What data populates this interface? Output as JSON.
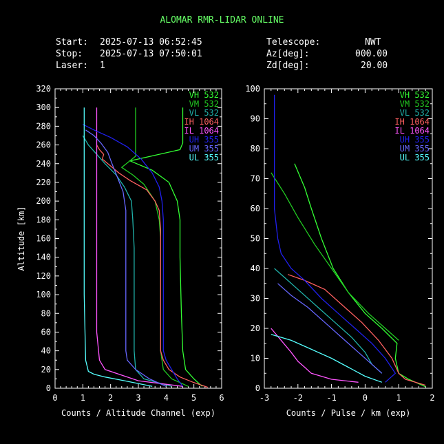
{
  "header": {
    "title": "ALOMAR RMR-LIDAR ONLINE",
    "start_label": "Start:",
    "start_value": "2025-07-13 06:52:45",
    "stop_label": "Stop:",
    "stop_value": "2025-07-13 07:50:01",
    "laser_label": "Laser:",
    "laser_value": "1",
    "telescope_label": "Telescope:",
    "telescope_value": "NWT",
    "az_label": "Az[deg]:",
    "az_value": "000.00",
    "zd_label": "Zd[deg]:",
    "zd_value": "20.00"
  },
  "colors": {
    "VH 532": "#33ff33",
    "VM 532": "#22cc22",
    "VL 532": "#20b2aa",
    "IH 1064": "#ff6060",
    "IL 1064": "#ff55ff",
    "UH 355": "#2020ee",
    "UM 355": "#6666ff",
    "UL 355": "#55ffff"
  },
  "chart_data": [
    {
      "type": "line",
      "ylabel": "Altitude [km]",
      "xlabel": "Counts / Altitude Channel (exp)",
      "xlim": [
        0,
        6
      ],
      "ylim": [
        0,
        320
      ],
      "xticks": [
        "0",
        "1",
        "2",
        "3",
        "4",
        "5",
        "6"
      ],
      "yticks": [
        "0",
        "20",
        "40",
        "60",
        "80",
        "100",
        "120",
        "140",
        "160",
        "180",
        "200",
        "220",
        "240",
        "260",
        "280",
        "300",
        "320"
      ],
      "legend": [
        "VH 532",
        "VM 532",
        "VL 532",
        "IH 1064",
        "IL 1064",
        "UH 355",
        "UM 355",
        "UL 355"
      ],
      "legend_position": "top-right",
      "series": [
        {
          "name": "VH 532",
          "points": [
            [
              5.3,
              2
            ],
            [
              5.0,
              10
            ],
            [
              4.7,
              20
            ],
            [
              4.6,
              40
            ],
            [
              4.55,
              80
            ],
            [
              4.5,
              140
            ],
            [
              4.5,
              180
            ],
            [
              4.4,
              200
            ],
            [
              4.1,
              220
            ],
            [
              3.5,
              233
            ],
            [
              2.7,
              243
            ],
            [
              4.5,
              255
            ],
            [
              4.6,
              262
            ],
            [
              4.6,
              300
            ]
          ]
        },
        {
          "name": "VM 532",
          "points": [
            [
              4.8,
              2
            ],
            [
              4.2,
              10
            ],
            [
              3.9,
              20
            ],
            [
              3.8,
              40
            ],
            [
              3.8,
              70
            ],
            [
              3.8,
              120
            ],
            [
              3.8,
              160
            ],
            [
              3.75,
              180
            ],
            [
              3.6,
              200
            ],
            [
              3.2,
              218
            ],
            [
              2.8,
              228
            ],
            [
              2.4,
              236
            ],
            [
              2.9,
              248
            ],
            [
              2.9,
              260
            ],
            [
              2.9,
              300
            ]
          ]
        },
        {
          "name": "VL 532",
          "points": [
            [
              4.2,
              2
            ],
            [
              3.2,
              10
            ],
            [
              2.9,
              20
            ],
            [
              2.85,
              40
            ],
            [
              2.85,
              100
            ],
            [
              2.85,
              150
            ],
            [
              2.8,
              180
            ],
            [
              2.75,
              200
            ],
            [
              2.5,
              215
            ],
            [
              2.2,
              228
            ],
            [
              1.8,
              240
            ],
            [
              1.5,
              250
            ],
            [
              1.2,
              260
            ],
            [
              1.0,
              270
            ]
          ]
        },
        {
          "name": "IH 1064",
          "points": [
            [
              5.5,
              1
            ],
            [
              5.0,
              6
            ],
            [
              4.5,
              12
            ],
            [
              4.1,
              20
            ],
            [
              3.9,
              30
            ],
            [
              3.8,
              40
            ],
            [
              3.8,
              80
            ],
            [
              3.8,
              120
            ],
            [
              3.8,
              170
            ],
            [
              3.75,
              190
            ],
            [
              3.6,
              200
            ],
            [
              3.3,
              212
            ],
            [
              2.7,
              222
            ],
            [
              2.3,
              230
            ],
            [
              1.9,
              240
            ],
            [
              1.7,
              245
            ],
            [
              1.75,
              250
            ],
            [
              1.6,
              255
            ],
            [
              1.5,
              260
            ]
          ]
        },
        {
          "name": "IL 1064",
          "points": [
            [
              4.6,
              2
            ],
            [
              3.0,
              8
            ],
            [
              2.3,
              15
            ],
            [
              1.8,
              20
            ],
            [
              1.6,
              30
            ],
            [
              1.5,
              60
            ],
            [
              1.5,
              120
            ],
            [
              1.5,
              200
            ],
            [
              1.5,
              260
            ],
            [
              1.5,
              300
            ]
          ]
        },
        {
          "name": "UH 355",
          "points": [
            [
              4.6,
              2
            ],
            [
              4.4,
              10
            ],
            [
              4.2,
              20
            ],
            [
              4.0,
              30
            ],
            [
              3.9,
              40
            ],
            [
              3.9,
              80
            ],
            [
              3.9,
              140
            ],
            [
              3.9,
              180
            ],
            [
              3.85,
              200
            ],
            [
              3.75,
              215
            ],
            [
              3.5,
              230
            ],
            [
              3.1,
              245
            ],
            [
              2.6,
              258
            ],
            [
              2.0,
              268
            ],
            [
              1.4,
              276
            ],
            [
              1.0,
              282
            ]
          ]
        },
        {
          "name": "UM 355",
          "points": [
            [
              4.0,
              2
            ],
            [
              3.4,
              10
            ],
            [
              2.9,
              20
            ],
            [
              2.6,
              30
            ],
            [
              2.55,
              40
            ],
            [
              2.55,
              80
            ],
            [
              2.55,
              140
            ],
            [
              2.55,
              190
            ],
            [
              2.45,
              210
            ],
            [
              2.25,
              225
            ],
            [
              2.05,
              240
            ],
            [
              1.9,
              252
            ],
            [
              1.65,
              262
            ],
            [
              1.4,
              270
            ],
            [
              1.1,
              276
            ]
          ]
        },
        {
          "name": "UL 355",
          "points": [
            [
              3.5,
              2
            ],
            [
              2.5,
              8
            ],
            [
              1.8,
              12
            ],
            [
              1.4,
              15
            ],
            [
              1.2,
              18
            ],
            [
              1.1,
              30
            ],
            [
              1.05,
              100
            ],
            [
              1.05,
              200
            ],
            [
              1.05,
              300
            ]
          ]
        }
      ]
    },
    {
      "type": "line",
      "xlabel": "Counts / Pulse / km (exp)",
      "xlim": [
        -3,
        2
      ],
      "ylim": [
        0,
        100
      ],
      "xticks": [
        "-3",
        "-2",
        "-1",
        "0",
        "1",
        "2"
      ],
      "yticks": [
        "0",
        "10",
        "20",
        "30",
        "40",
        "50",
        "60",
        "70",
        "80",
        "90",
        "100"
      ],
      "legend": [
        "VH 532",
        "VM 532",
        "VL 532",
        "IH 1064",
        "IL 1064",
        "UH 355",
        "UM 355",
        "UL 355"
      ],
      "legend_position": "top-right",
      "series": [
        {
          "name": "VH 532",
          "points": [
            [
              1.8,
              0.5
            ],
            [
              1.3,
              3
            ],
            [
              1.0,
              5
            ],
            [
              0.9,
              10
            ],
            [
              0.95,
              15
            ],
            [
              0.5,
              20
            ],
            [
              0.0,
              25
            ],
            [
              -0.5,
              32
            ],
            [
              -0.95,
              40
            ],
            [
              -1.3,
              50
            ],
            [
              -1.6,
              60
            ],
            [
              -1.8,
              67
            ],
            [
              -2.1,
              75
            ]
          ]
        },
        {
          "name": "VM 532",
          "points": [
            [
              1.0,
              16
            ],
            [
              0.6,
              20
            ],
            [
              0.1,
              25
            ],
            [
              -0.5,
              32
            ],
            [
              -1.0,
              40
            ],
            [
              -1.5,
              48
            ],
            [
              -2.0,
              57
            ],
            [
              -2.4,
              65
            ],
            [
              -2.8,
              72
            ]
          ]
        },
        {
          "name": "VL 532",
          "points": [
            [
              0.5,
              5
            ],
            [
              0.2,
              8
            ],
            [
              0.0,
              12
            ],
            [
              -0.4,
              17
            ],
            [
              -0.9,
              22
            ],
            [
              -1.4,
              27
            ],
            [
              -1.9,
              32
            ],
            [
              -2.3,
              36
            ],
            [
              -2.7,
              40
            ]
          ]
        },
        {
          "name": "IH 1064",
          "points": [
            [
              1.8,
              1
            ],
            [
              1.2,
              3
            ],
            [
              1.0,
              5
            ],
            [
              0.8,
              10
            ],
            [
              0.4,
              16
            ],
            [
              -0.1,
              22
            ],
            [
              -0.6,
              27
            ],
            [
              -1.2,
              33
            ],
            [
              -1.8,
              36
            ],
            [
              -2.3,
              38
            ]
          ]
        },
        {
          "name": "IL 1064",
          "points": [
            [
              -0.2,
              2
            ],
            [
              -1.0,
              3
            ],
            [
              -1.6,
              5
            ],
            [
              -1.8,
              7
            ],
            [
              -2.0,
              9
            ],
            [
              -2.2,
              12
            ],
            [
              -2.5,
              16
            ],
            [
              -2.8,
              20
            ]
          ]
        },
        {
          "name": "UH 355",
          "points": [
            [
              0.6,
              2
            ],
            [
              0.9,
              5
            ],
            [
              0.6,
              10
            ],
            [
              0.2,
              15
            ],
            [
              -0.3,
              20
            ],
            [
              -0.8,
              25
            ],
            [
              -1.3,
              30
            ],
            [
              -1.8,
              36
            ],
            [
              -2.2,
              40
            ],
            [
              -2.5,
              45
            ],
            [
              -2.6,
              50
            ],
            [
              -2.7,
              60
            ],
            [
              -2.7,
              80
            ],
            [
              -2.7,
              98
            ]
          ]
        },
        {
          "name": "UM 355",
          "points": [
            [
              0.5,
              5
            ],
            [
              0.2,
              8
            ],
            [
              -0.2,
              12
            ],
            [
              -0.7,
              17
            ],
            [
              -1.2,
              22
            ],
            [
              -1.7,
              27
            ],
            [
              -2.2,
              31
            ],
            [
              -2.6,
              35
            ]
          ]
        },
        {
          "name": "UL 355",
          "points": [
            [
              0.5,
              2
            ],
            [
              0.0,
              4
            ],
            [
              -0.5,
              7
            ],
            [
              -1.0,
              10
            ],
            [
              -1.6,
              13
            ],
            [
              -2.2,
              16
            ],
            [
              -2.8,
              18
            ]
          ]
        }
      ]
    }
  ]
}
